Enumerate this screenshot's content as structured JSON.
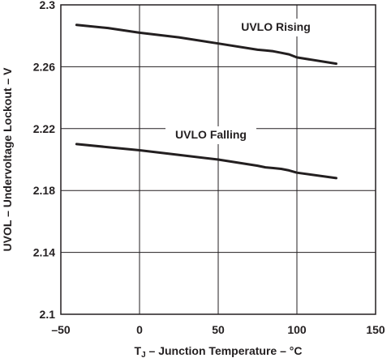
{
  "chart_data": {
    "type": "line",
    "title": "",
    "xlabel": {
      "prefix": "T",
      "sub": "J",
      "rest": " – Junction Temperature – °C"
    },
    "ylabel": "UVOL – Undervoltage Lockout – V",
    "xlim": [
      -50,
      150
    ],
    "ylim": [
      2.1,
      2.3
    ],
    "xticks": [
      -50,
      0,
      50,
      100,
      150
    ],
    "xtick_labels": [
      "–50",
      "0",
      "50",
      "100",
      "150"
    ],
    "yticks": [
      2.1,
      2.14,
      2.18,
      2.22,
      2.26,
      2.3
    ],
    "ytick_labels": [
      "2.1",
      "2.14",
      "2.18",
      "2.22",
      "2.26",
      "2.3"
    ],
    "grid": true,
    "series": [
      {
        "name": "UVLO Rising",
        "x": [
          -40,
          -20,
          0,
          25,
          50,
          75,
          80,
          85,
          90,
          95,
          100,
          125
        ],
        "y": [
          2.287,
          2.285,
          2.282,
          2.279,
          2.275,
          2.271,
          2.2705,
          2.27,
          2.269,
          2.268,
          2.266,
          2.262
        ]
      },
      {
        "name": "UVLO Falling",
        "x": [
          -40,
          -20,
          0,
          25,
          50,
          75,
          80,
          85,
          90,
          95,
          100,
          125
        ],
        "y": [
          2.21,
          2.208,
          2.206,
          2.203,
          2.2,
          2.196,
          2.195,
          2.1945,
          2.194,
          2.193,
          2.1915,
          2.188
        ]
      }
    ]
  }
}
